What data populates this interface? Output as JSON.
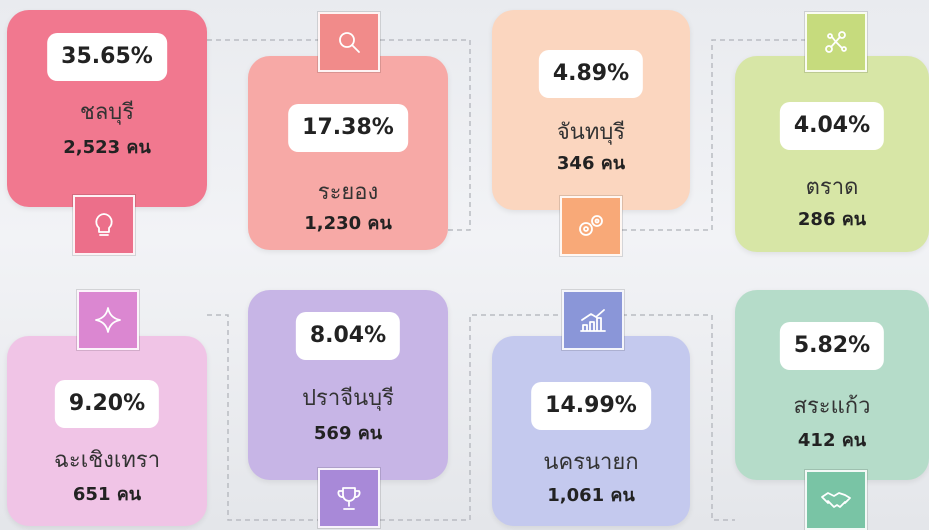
{
  "cards": [
    {
      "percent": "35.65%",
      "name": "ชลบุรี",
      "count": "2,523 คน"
    },
    {
      "percent": "17.38%",
      "name": "ระยอง",
      "count": "1,230 คน"
    },
    {
      "percent": "4.89%",
      "name": "จันทบุรี",
      "count": "346 คน"
    },
    {
      "percent": "4.04%",
      "name": "ตราด",
      "count": "286 คน"
    },
    {
      "percent": "9.20%",
      "name": "ฉะเชิงเทรา",
      "count": "651 คน"
    },
    {
      "percent": "8.04%",
      "name": "ปราจีนบุรี",
      "count": "569 คน"
    },
    {
      "percent": "14.99%",
      "name": "นครนายก",
      "count": "1,061 คน"
    },
    {
      "percent": "5.82%",
      "name": "สระแก้ว",
      "count": "412 คน"
    }
  ]
}
